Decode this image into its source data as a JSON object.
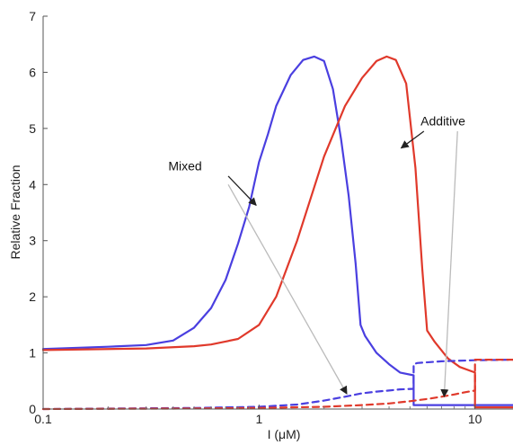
{
  "chart_data": {
    "type": "line",
    "title": "",
    "xlabel": "I (μM)",
    "ylabel": "Relative Fraction",
    "xscale": "log",
    "xlim": [
      0.1,
      15
    ],
    "ylim": [
      0,
      7
    ],
    "xticks": [
      {
        "value": 0.1,
        "label": "0.1"
      },
      {
        "value": 1,
        "label": "1"
      },
      {
        "value": 10,
        "label": "10"
      }
    ],
    "yticks": [
      {
        "value": 0,
        "label": "0"
      },
      {
        "value": 1,
        "label": "1"
      },
      {
        "value": 2,
        "label": "2"
      },
      {
        "value": 3,
        "label": "3"
      },
      {
        "value": 4,
        "label": "4"
      },
      {
        "value": 5,
        "label": "5"
      },
      {
        "value": 6,
        "label": "6"
      },
      {
        "value": 7,
        "label": "7"
      }
    ],
    "grid": false,
    "series": [
      {
        "color": "#4a3fe0",
        "style": "solid",
        "x": [
          0.1,
          0.2,
          0.3,
          0.4,
          0.5,
          0.6,
          0.7,
          0.8,
          0.9,
          1.0,
          1.1,
          1.2,
          1.4,
          1.6,
          1.8,
          2.0,
          2.2,
          2.4,
          2.6,
          2.8,
          2.95,
          3.1,
          3.5,
          4.0,
          4.5,
          5.2,
          5.2,
          5.2,
          15
        ],
        "y": [
          1.07,
          1.11,
          1.14,
          1.22,
          1.45,
          1.8,
          2.3,
          2.95,
          3.6,
          4.4,
          4.9,
          5.4,
          5.95,
          6.22,
          6.28,
          6.2,
          5.7,
          4.8,
          3.8,
          2.6,
          1.5,
          1.3,
          1.0,
          0.8,
          0.65,
          0.6,
          0.1,
          0.07,
          0.07
        ]
      },
      {
        "color": "#e0392b",
        "style": "solid",
        "x": [
          0.1,
          0.3,
          0.5,
          0.6,
          0.8,
          1.0,
          1.2,
          1.5,
          2.0,
          2.5,
          3.0,
          3.5,
          3.9,
          4.3,
          4.8,
          5.3,
          5.7,
          6.0,
          6.5,
          7.5,
          8.5,
          10.0,
          10.0,
          10.0,
          15
        ],
        "y": [
          1.05,
          1.08,
          1.12,
          1.15,
          1.25,
          1.5,
          2.0,
          3.0,
          4.5,
          5.4,
          5.9,
          6.2,
          6.28,
          6.22,
          5.8,
          4.3,
          2.5,
          1.4,
          1.2,
          0.9,
          0.75,
          0.65,
          0.1,
          0.03,
          0.03
        ]
      },
      {
        "color": "#4a3fe0",
        "style": "dashed",
        "x": [
          0.1,
          0.5,
          1.0,
          1.5,
          2.0,
          2.5,
          3.0,
          3.5,
          4.0,
          4.5,
          5.2,
          5.2,
          5.4,
          7.0,
          10.0,
          15
        ],
        "y": [
          0.0,
          0.02,
          0.04,
          0.08,
          0.15,
          0.22,
          0.28,
          0.31,
          0.33,
          0.35,
          0.36,
          0.8,
          0.82,
          0.85,
          0.87,
          0.88
        ]
      },
      {
        "color": "#e0392b",
        "style": "dashed",
        "x": [
          0.1,
          0.5,
          1.0,
          2.0,
          3.0,
          4.0,
          5.0,
          6.0,
          7.0,
          8.0,
          9.0,
          10.0,
          10.0,
          15
        ],
        "y": [
          0.0,
          0.01,
          0.02,
          0.04,
          0.07,
          0.1,
          0.14,
          0.18,
          0.22,
          0.26,
          0.3,
          0.33,
          0.88,
          0.88
        ]
      }
    ],
    "annotations": [
      {
        "text": "Mixed",
        "label_pos": {
          "x": 0.38,
          "y": 4.25
        },
        "arrows": [
          {
            "from": {
              "x": 0.72,
              "y": 4.15
            },
            "to": {
              "x": 0.97,
              "y": 3.63
            },
            "arrow_color": "#222"
          },
          {
            "from": {
              "x": 0.72,
              "y": 4.0
            },
            "to": {
              "x": 2.55,
              "y": 0.27
            },
            "arrow_color": "#bbbbbb"
          }
        ]
      },
      {
        "text": "Additive",
        "label_pos": {
          "x": 5.6,
          "y": 5.05
        },
        "arrows": [
          {
            "from": {
              "x": 5.8,
              "y": 4.95
            },
            "to": {
              "x": 4.55,
              "y": 4.65
            },
            "arrow_color": "#222"
          },
          {
            "from": {
              "x": 8.3,
              "y": 4.95
            },
            "to": {
              "x": 7.2,
              "y": 0.22
            },
            "arrow_color": "#bbbbbb"
          }
        ]
      }
    ]
  }
}
